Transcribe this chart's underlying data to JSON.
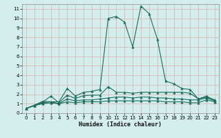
{
  "xlabel": "Humidex (Indice chaleur)",
  "ylabel": "",
  "xlim": [
    -0.5,
    23.5
  ],
  "ylim": [
    0,
    11.5
  ],
  "xticks": [
    0,
    1,
    2,
    3,
    4,
    5,
    6,
    7,
    8,
    9,
    10,
    11,
    12,
    13,
    14,
    15,
    16,
    17,
    18,
    19,
    20,
    21,
    22,
    23
  ],
  "yticks": [
    0,
    1,
    2,
    3,
    4,
    5,
    6,
    7,
    8,
    9,
    10,
    11
  ],
  "bg_color": "#d4eeed",
  "grid_color_major": "#c0dede",
  "grid_color_minor": "#e8f4f4",
  "line_color": "#1a6b5a",
  "lines": [
    {
      "x": [
        0,
        1,
        2,
        3,
        4,
        5,
        6,
        7,
        8,
        9,
        10,
        11,
        12,
        13,
        14,
        15,
        16,
        17,
        18,
        19,
        20,
        21,
        22,
        23
      ],
      "y": [
        0.5,
        0.85,
        1.25,
        1.2,
        1.2,
        2.6,
        1.8,
        2.2,
        2.3,
        2.5,
        10.0,
        10.2,
        9.6,
        7.0,
        11.3,
        10.5,
        7.8,
        3.4,
        3.1,
        2.6,
        2.5,
        1.5,
        1.8,
        1.35
      ]
    },
    {
      "x": [
        0,
        1,
        2,
        3,
        4,
        5,
        6,
        7,
        8,
        9,
        10,
        11,
        12,
        13,
        14,
        15,
        16,
        17,
        18,
        19,
        20,
        21,
        22,
        23
      ],
      "y": [
        0.5,
        0.8,
        1.15,
        1.8,
        1.1,
        1.9,
        1.55,
        1.85,
        1.9,
        1.9,
        2.8,
        2.2,
        2.2,
        2.1,
        2.2,
        2.2,
        2.2,
        2.2,
        2.2,
        2.2,
        2.1,
        1.5,
        1.7,
        1.4
      ]
    },
    {
      "x": [
        0,
        1,
        2,
        3,
        4,
        5,
        6,
        7,
        8,
        9,
        10,
        11,
        12,
        13,
        14,
        15,
        16,
        17,
        18,
        19,
        20,
        21,
        22,
        23
      ],
      "y": [
        0.5,
        0.8,
        1.1,
        1.2,
        1.0,
        1.5,
        1.3,
        1.4,
        1.4,
        1.5,
        1.6,
        1.7,
        1.7,
        1.6,
        1.7,
        1.7,
        1.6,
        1.6,
        1.5,
        1.5,
        1.4,
        1.4,
        1.6,
        1.3
      ]
    },
    {
      "x": [
        0,
        1,
        2,
        3,
        4,
        5,
        6,
        7,
        8,
        9,
        10,
        11,
        12,
        13,
        14,
        15,
        16,
        17,
        18,
        19,
        20,
        21,
        22,
        23
      ],
      "y": [
        0.5,
        0.8,
        1.0,
        1.1,
        1.0,
        1.2,
        1.1,
        1.2,
        1.2,
        1.2,
        1.3,
        1.3,
        1.3,
        1.3,
        1.3,
        1.3,
        1.3,
        1.2,
        1.2,
        1.2,
        1.1,
        1.1,
        1.4,
        1.2
      ]
    }
  ]
}
